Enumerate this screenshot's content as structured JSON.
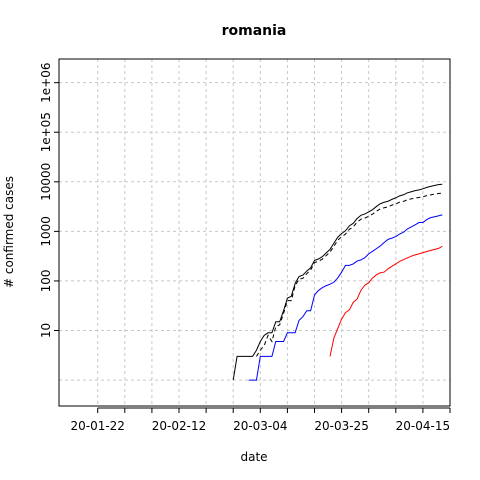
{
  "chart_data": {
    "type": "line",
    "title": "romania",
    "xlabel": "date",
    "ylabel": "# confirmed cases",
    "x_axis": {
      "type": "date",
      "range": [
        "2020-01-12",
        "2020-04-22"
      ],
      "ticks": [
        {
          "date": "2020-01-22",
          "label": "20-01-22"
        },
        {
          "date": "2020-02-12",
          "label": "20-02-12"
        },
        {
          "date": "2020-03-04",
          "label": "20-03-04"
        },
        {
          "date": "2020-03-25",
          "label": "20-03-25"
        },
        {
          "date": "2020-04-15",
          "label": "20-04-15"
        }
      ],
      "minor_ticks": [
        "2020-01-22",
        "2020-01-29",
        "2020-02-05",
        "2020-02-12",
        "2020-02-19",
        "2020-02-26",
        "2020-03-04",
        "2020-03-11",
        "2020-03-18",
        "2020-03-25",
        "2020-04-01",
        "2020-04-08",
        "2020-04-15",
        "2020-04-22"
      ]
    },
    "y_axis": {
      "scale": "log",
      "range": [
        0.3,
        3000000
      ],
      "ticks": [
        {
          "value": 10,
          "label": "10"
        },
        {
          "value": 100,
          "label": "100"
        },
        {
          "value": 1000,
          "label": "1000"
        },
        {
          "value": 10000,
          "label": "10000"
        },
        {
          "value": 100000,
          "label": "1e+05"
        },
        {
          "value": 1000000,
          "label": "1e+06"
        }
      ],
      "minor_grid": [
        1,
        10,
        100,
        1000,
        10000,
        100000,
        1000000
      ]
    },
    "grid": true,
    "series": [
      {
        "color": "#000000",
        "dash": "solid",
        "points": [
          [
            "2020-02-26",
            1
          ],
          [
            "2020-02-27",
            3
          ],
          [
            "2020-03-01",
            3
          ],
          [
            "2020-03-02",
            3
          ],
          [
            "2020-03-03",
            4
          ],
          [
            "2020-03-04",
            6
          ],
          [
            "2020-03-05",
            8
          ],
          [
            "2020-03-06",
            9
          ],
          [
            "2020-03-07",
            9
          ],
          [
            "2020-03-08",
            15
          ],
          [
            "2020-03-09",
            15
          ],
          [
            "2020-03-10",
            25
          ],
          [
            "2020-03-11",
            45
          ],
          [
            "2020-03-12",
            49
          ],
          [
            "2020-03-13",
            89
          ],
          [
            "2020-03-14",
            123
          ],
          [
            "2020-03-15",
            131
          ],
          [
            "2020-03-16",
            158
          ],
          [
            "2020-03-17",
            184
          ],
          [
            "2020-03-18",
            260
          ],
          [
            "2020-03-19",
            277
          ],
          [
            "2020-03-20",
            308
          ],
          [
            "2020-03-21",
            367
          ],
          [
            "2020-03-22",
            433
          ],
          [
            "2020-03-23",
            576
          ],
          [
            "2020-03-24",
            762
          ],
          [
            "2020-03-25",
            906
          ],
          [
            "2020-03-26",
            1029
          ],
          [
            "2020-03-27",
            1292
          ],
          [
            "2020-03-28",
            1452
          ],
          [
            "2020-03-29",
            1815
          ],
          [
            "2020-03-30",
            2109
          ],
          [
            "2020-03-31",
            2245
          ],
          [
            "2020-04-01",
            2460
          ],
          [
            "2020-04-02",
            2738
          ],
          [
            "2020-04-03",
            3183
          ],
          [
            "2020-04-04",
            3613
          ],
          [
            "2020-04-05",
            3864
          ],
          [
            "2020-04-06",
            4057
          ],
          [
            "2020-04-07",
            4417
          ],
          [
            "2020-04-08",
            4761
          ],
          [
            "2020-04-09",
            5202
          ],
          [
            "2020-04-10",
            5467
          ],
          [
            "2020-04-11",
            5990
          ],
          [
            "2020-04-12",
            6300
          ],
          [
            "2020-04-13",
            6633
          ],
          [
            "2020-04-14",
            6879
          ],
          [
            "2020-04-15",
            7216
          ],
          [
            "2020-04-16",
            7707
          ],
          [
            "2020-04-17",
            8067
          ],
          [
            "2020-04-18",
            8418
          ],
          [
            "2020-04-19",
            8746
          ],
          [
            "2020-04-20",
            8936
          ]
        ]
      },
      {
        "color": "#000000",
        "dash": "dashed",
        "points": [
          [
            "2020-03-03",
            3
          ],
          [
            "2020-03-04",
            4
          ],
          [
            "2020-03-05",
            5
          ],
          [
            "2020-03-06",
            8
          ],
          [
            "2020-03-07",
            6
          ],
          [
            "2020-03-08",
            12
          ],
          [
            "2020-03-09",
            13
          ],
          [
            "2020-03-10",
            22
          ],
          [
            "2020-03-11",
            40
          ],
          [
            "2020-03-12",
            40
          ],
          [
            "2020-03-13",
            80
          ],
          [
            "2020-03-14",
            108
          ],
          [
            "2020-03-15",
            113
          ],
          [
            "2020-03-16",
            140
          ],
          [
            "2020-03-17",
            165
          ],
          [
            "2020-03-18",
            235
          ],
          [
            "2020-03-19",
            248
          ],
          [
            "2020-03-20",
            275
          ],
          [
            "2020-03-21",
            325
          ],
          [
            "2020-03-22",
            380
          ],
          [
            "2020-03-23",
            500
          ],
          [
            "2020-03-24",
            660
          ],
          [
            "2020-03-25",
            780
          ],
          [
            "2020-03-26",
            880
          ],
          [
            "2020-03-27",
            1100
          ],
          [
            "2020-03-28",
            1230
          ],
          [
            "2020-03-29",
            1530
          ],
          [
            "2020-03-30",
            1760
          ],
          [
            "2020-03-31",
            1850
          ],
          [
            "2020-04-01",
            2020
          ],
          [
            "2020-04-02",
            2230
          ],
          [
            "2020-04-03",
            2550
          ],
          [
            "2020-04-04",
            2850
          ],
          [
            "2020-04-05",
            3000
          ],
          [
            "2020-04-06",
            3130
          ],
          [
            "2020-04-07",
            3380
          ],
          [
            "2020-04-08",
            3600
          ],
          [
            "2020-04-09",
            3880
          ],
          [
            "2020-04-10",
            4030
          ],
          [
            "2020-04-11",
            4350
          ],
          [
            "2020-04-12",
            4520
          ],
          [
            "2020-04-13",
            4700
          ],
          [
            "2020-04-14",
            4820
          ],
          [
            "2020-04-15",
            5000
          ],
          [
            "2020-04-16",
            5250
          ],
          [
            "2020-04-17",
            5450
          ],
          [
            "2020-04-18",
            5650
          ],
          [
            "2020-04-19",
            5800
          ],
          [
            "2020-04-20",
            5900
          ]
        ]
      },
      {
        "color": "#0000ff",
        "dash": "solid",
        "points": [
          [
            "2020-03-01",
            1
          ],
          [
            "2020-03-02",
            1
          ],
          [
            "2020-03-03",
            1
          ],
          [
            "2020-03-04",
            3
          ],
          [
            "2020-03-05",
            3
          ],
          [
            "2020-03-06",
            3
          ],
          [
            "2020-03-07",
            3
          ],
          [
            "2020-03-08",
            6
          ],
          [
            "2020-03-09",
            6
          ],
          [
            "2020-03-10",
            6
          ],
          [
            "2020-03-11",
            9
          ],
          [
            "2020-03-12",
            9
          ],
          [
            "2020-03-13",
            9
          ],
          [
            "2020-03-14",
            16
          ],
          [
            "2020-03-15",
            19
          ],
          [
            "2020-03-16",
            25
          ],
          [
            "2020-03-17",
            25
          ],
          [
            "2020-03-18",
            52
          ],
          [
            "2020-03-19",
            64
          ],
          [
            "2020-03-20",
            73
          ],
          [
            "2020-03-21",
            80
          ],
          [
            "2020-03-22",
            86
          ],
          [
            "2020-03-23",
            94
          ],
          [
            "2020-03-24",
            115
          ],
          [
            "2020-03-25",
            150
          ],
          [
            "2020-03-26",
            206
          ],
          [
            "2020-03-27",
            206
          ],
          [
            "2020-03-28",
            220
          ],
          [
            "2020-03-29",
            252
          ],
          [
            "2020-03-30",
            266
          ],
          [
            "2020-03-31",
            294
          ],
          [
            "2020-04-01",
            352
          ],
          [
            "2020-04-02",
            396
          ],
          [
            "2020-04-03",
            448
          ],
          [
            "2020-04-04",
            508
          ],
          [
            "2020-04-05",
            595
          ],
          [
            "2020-04-06",
            690
          ],
          [
            "2020-04-07",
            731
          ],
          [
            "2020-04-08",
            785
          ],
          [
            "2020-04-09",
            884
          ],
          [
            "2020-04-10",
            960
          ],
          [
            "2020-04-11",
            1122
          ],
          [
            "2020-04-12",
            1226
          ],
          [
            "2020-04-13",
            1357
          ],
          [
            "2020-04-14",
            1508
          ],
          [
            "2020-04-15",
            1508
          ],
          [
            "2020-04-16",
            1730
          ],
          [
            "2020-04-17",
            1892
          ],
          [
            "2020-04-18",
            1972
          ],
          [
            "2020-04-19",
            2050
          ],
          [
            "2020-04-20",
            2150
          ]
        ]
      },
      {
        "color": "#ff0000",
        "dash": "solid",
        "points": [
          [
            "2020-03-22",
            3
          ],
          [
            "2020-03-23",
            7
          ],
          [
            "2020-03-24",
            11
          ],
          [
            "2020-03-25",
            17
          ],
          [
            "2020-03-26",
            23
          ],
          [
            "2020-03-27",
            26
          ],
          [
            "2020-03-28",
            37
          ],
          [
            "2020-03-29",
            43
          ],
          [
            "2020-03-30",
            65
          ],
          [
            "2020-03-31",
            82
          ],
          [
            "2020-04-01",
            92
          ],
          [
            "2020-04-02",
            115
          ],
          [
            "2020-04-03",
            133
          ],
          [
            "2020-04-04",
            146
          ],
          [
            "2020-04-05",
            151
          ],
          [
            "2020-04-06",
            176
          ],
          [
            "2020-04-07",
            197
          ],
          [
            "2020-04-08",
            220
          ],
          [
            "2020-04-09",
            248
          ],
          [
            "2020-04-10",
            270
          ],
          [
            "2020-04-11",
            291
          ],
          [
            "2020-04-12",
            316
          ],
          [
            "2020-04-13",
            336
          ],
          [
            "2020-04-14",
            351
          ],
          [
            "2020-04-15",
            372
          ],
          [
            "2020-04-16",
            392
          ],
          [
            "2020-04-17",
            411
          ],
          [
            "2020-04-18",
            434
          ],
          [
            "2020-04-19",
            451
          ],
          [
            "2020-04-20",
            498
          ]
        ]
      }
    ]
  }
}
